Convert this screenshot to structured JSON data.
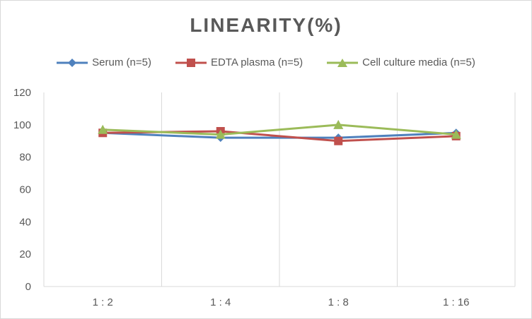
{
  "chart_data": {
    "type": "line",
    "title": "LINEARITY(%)",
    "xlabel": "",
    "ylabel": "",
    "categories": [
      "1:2",
      "1:4",
      "1:8",
      "1:16"
    ],
    "ylim": [
      0,
      120
    ],
    "yticks": [
      0,
      20,
      40,
      60,
      80,
      100,
      120
    ],
    "grid": "vertical",
    "legend": "top",
    "series": [
      {
        "name": "Serum (n=5)",
        "color": "#4f81bd",
        "marker": "diamond",
        "values": [
          95,
          92,
          92,
          95
        ]
      },
      {
        "name": "EDTA plasma (n=5)",
        "color": "#c0504d",
        "marker": "square",
        "values": [
          95,
          96,
          90,
          93
        ]
      },
      {
        "name": "Cell culture media (n=5)",
        "color": "#9bbb59",
        "marker": "triangle",
        "values": [
          97,
          94,
          100,
          94
        ]
      }
    ]
  }
}
